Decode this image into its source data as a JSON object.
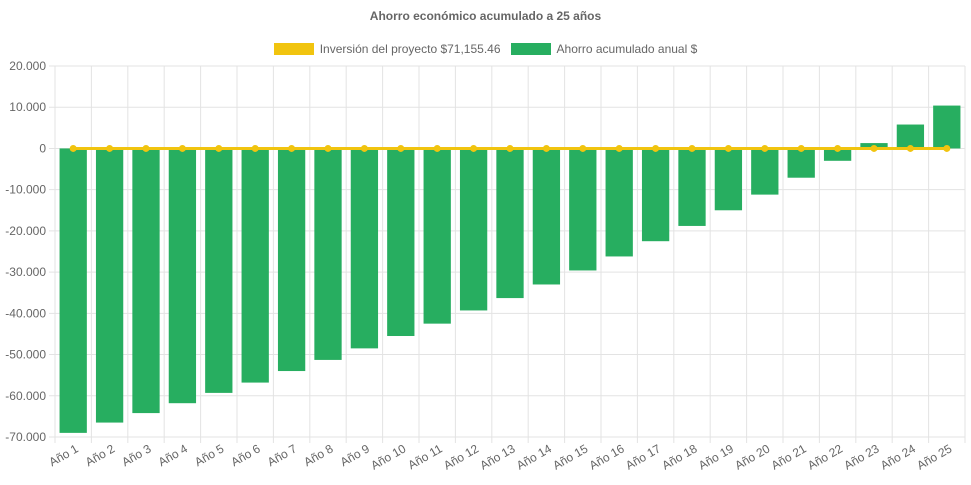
{
  "chart_data": {
    "type": "bar",
    "title": "Ahorro económico acumulado a 25 años",
    "categories": [
      "Año 1",
      "Año 2",
      "Año 3",
      "Año 4",
      "Año 5",
      "Año 6",
      "Año 7",
      "Año 8",
      "Año 9",
      "Año 10",
      "Año 11",
      "Año 12",
      "Año 13",
      "Año 14",
      "Año 15",
      "Año 16",
      "Año 17",
      "Año 18",
      "Año 19",
      "Año 20",
      "Año 21",
      "Año 22",
      "Año 23",
      "Año 24",
      "Año 25"
    ],
    "series": [
      {
        "name": "Inversión del proyecto $71,155.46",
        "type": "line",
        "color": "#f1c40f",
        "values": [
          0,
          0,
          0,
          0,
          0,
          0,
          0,
          0,
          0,
          0,
          0,
          0,
          0,
          0,
          0,
          0,
          0,
          0,
          0,
          0,
          0,
          0,
          0,
          0,
          0
        ]
      },
      {
        "name": "Ahorro acumulado anual $",
        "type": "bar",
        "color": "#27ae60",
        "values": [
          -69000,
          -66500,
          -64200,
          -61800,
          -59300,
          -56800,
          -54000,
          -51300,
          -48500,
          -45500,
          -42500,
          -39300,
          -36300,
          -33000,
          -29600,
          -26200,
          -22500,
          -18800,
          -15000,
          -11200,
          -7100,
          -3000,
          1300,
          5800,
          10400
        ]
      }
    ],
    "yticks": [
      "20.000",
      "10.000",
      "0",
      "-10.000",
      "-20.000",
      "-30.000",
      "-40.000",
      "-50.000",
      "-60.000",
      "-70.000"
    ],
    "ylim": [
      -70000,
      20000
    ],
    "grid": true,
    "legend_position": "top"
  }
}
